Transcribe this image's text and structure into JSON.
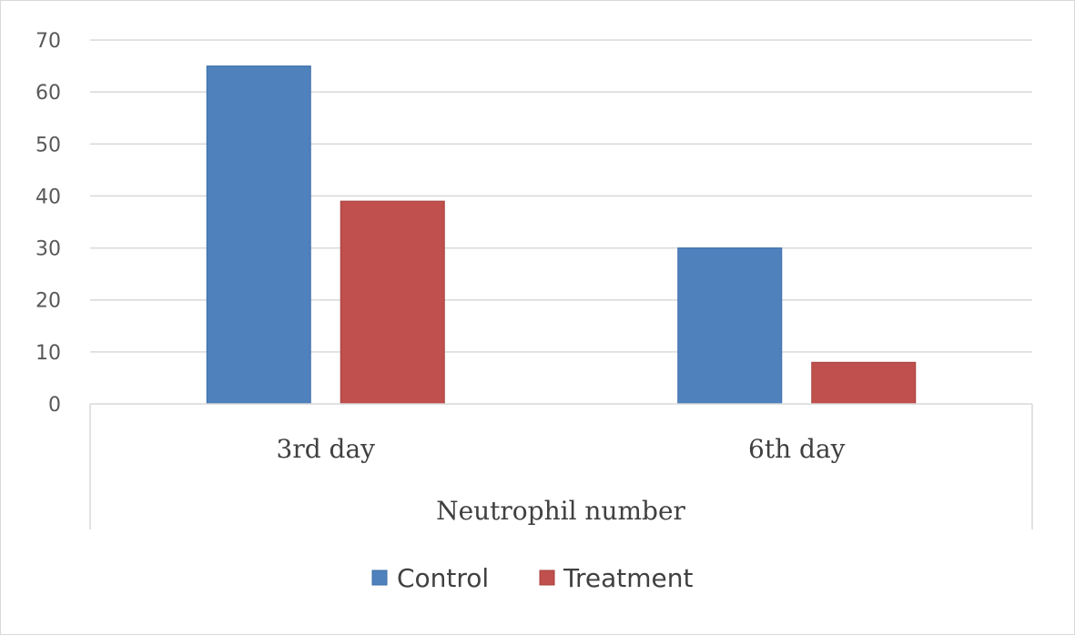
{
  "chart_data": {
    "type": "bar",
    "categories": [
      "3rd day",
      "6th day"
    ],
    "group_label": "Neutrophil number",
    "series": [
      {
        "name": "Control",
        "values": [
          65,
          30
        ],
        "color": "#4f81bd",
        "stroke": "#3b6ea8"
      },
      {
        "name": "Treatment",
        "values": [
          39,
          8
        ],
        "color": "#c0504d",
        "stroke": "#a5403d"
      }
    ],
    "ylim": [
      0,
      70
    ],
    "yticks": [
      "0",
      "10",
      "20",
      "30",
      "40",
      "50",
      "60",
      "70"
    ],
    "grid": true,
    "legend_position": "bottom"
  }
}
